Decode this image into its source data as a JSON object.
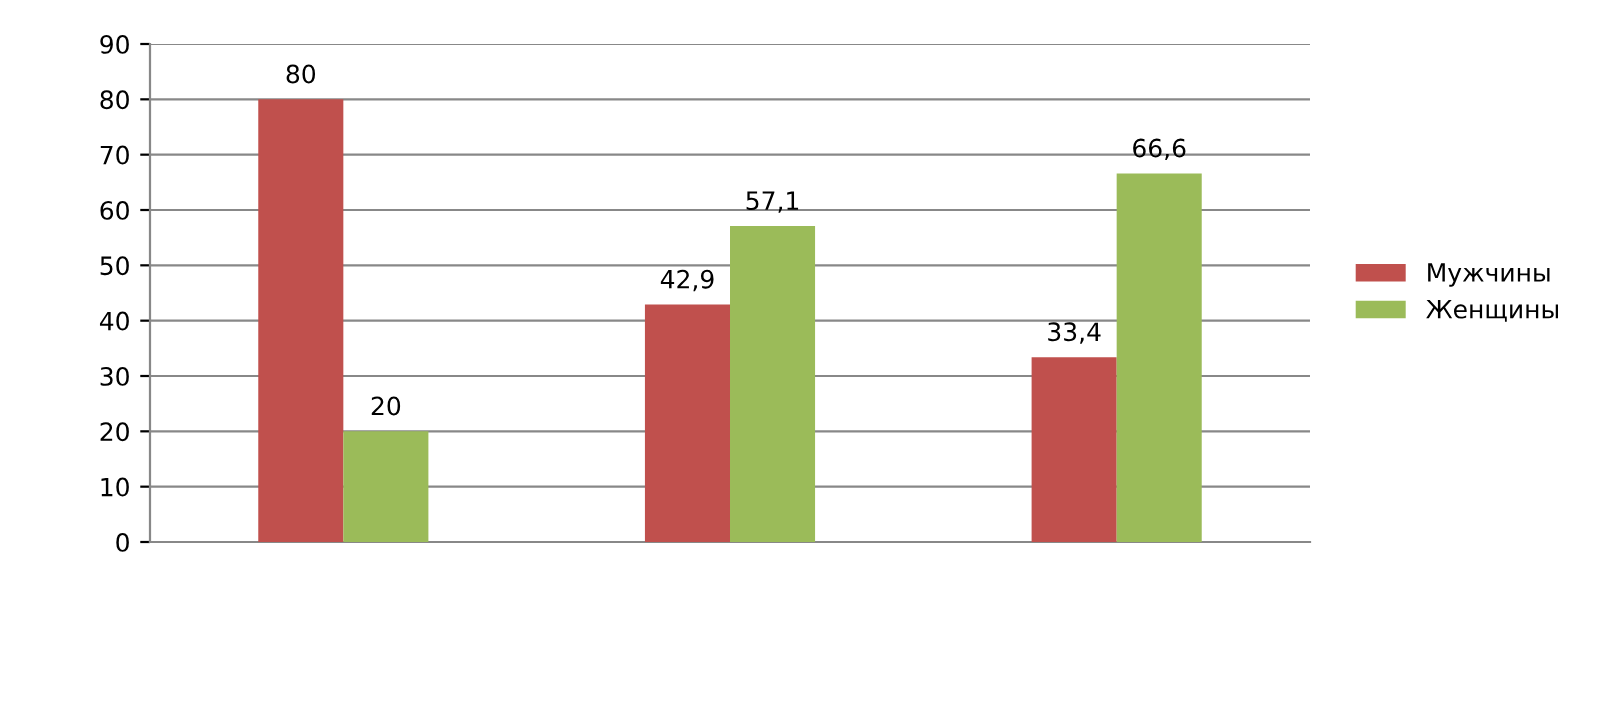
{
  "chart_data": {
    "type": "bar",
    "categories": [
      null,
      null,
      null
    ],
    "series": [
      {
        "name": "Мужчины",
        "color": "#c0504d",
        "values": [
          80,
          42.9,
          33.4
        ],
        "value_labels": [
          "80",
          "42,9",
          "33,4"
        ]
      },
      {
        "name": "Женщины",
        "color": "#9bbb59",
        "values": [
          20,
          57.1,
          66.6
        ],
        "value_labels": [
          "20",
          "57,1",
          "66,6"
        ]
      }
    ],
    "ylim": [
      0,
      90
    ],
    "yticks": [
      0,
      10,
      20,
      30,
      40,
      50,
      60,
      70,
      80,
      90
    ],
    "grid": "y",
    "legend": "right"
  }
}
